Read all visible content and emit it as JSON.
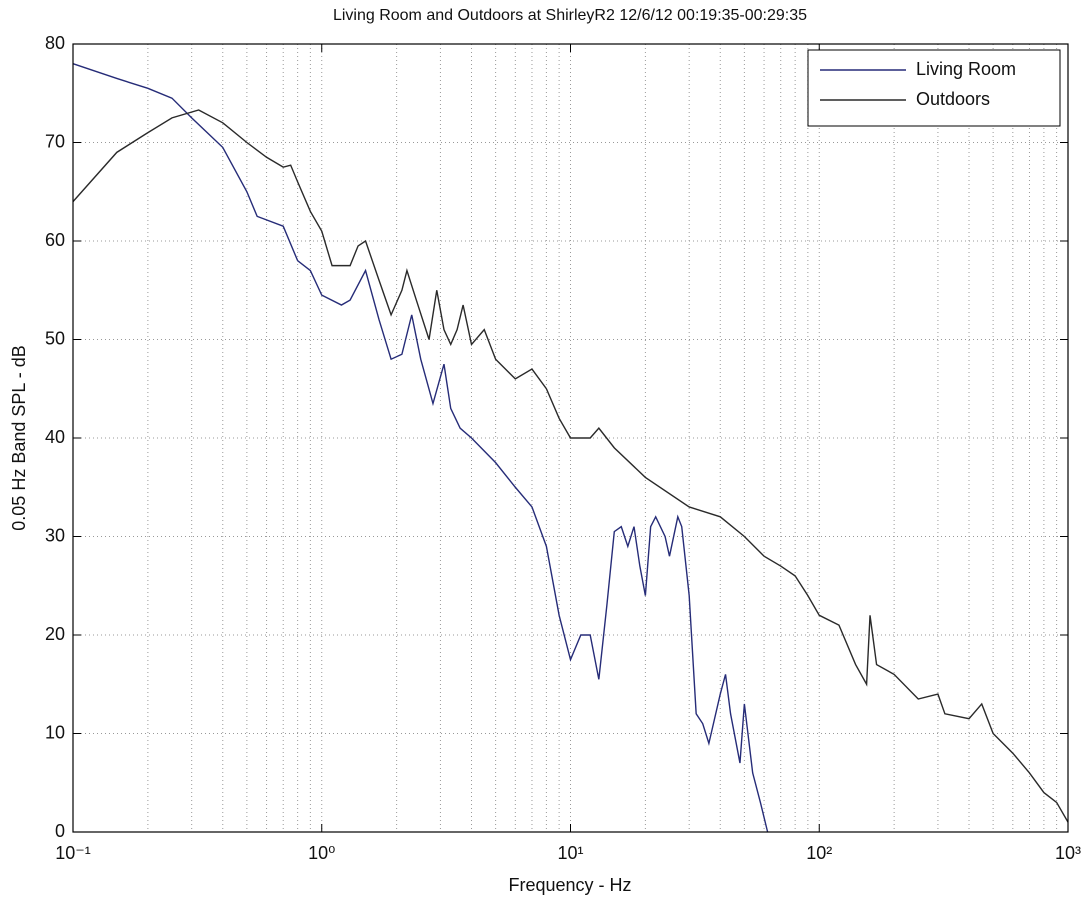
{
  "chart_data": {
    "type": "line",
    "title": "Living Room and Outdoors at ShirleyR2 12/6/12 00:19:35-00:29:35",
    "x_label": "Frequency - Hz",
    "y_label": "0.05 Hz Band SPL - dB",
    "x_scale": "log",
    "xlim": [
      0.1,
      1000
    ],
    "ylim": [
      0,
      80
    ],
    "xticks": [
      {
        "value": 0.1,
        "label": "10⁻¹"
      },
      {
        "value": 1,
        "label": "10⁰"
      },
      {
        "value": 10,
        "label": "10¹"
      },
      {
        "value": 100,
        "label": "10²"
      },
      {
        "value": 1000,
        "label": "10³"
      }
    ],
    "yticks": [
      0,
      10,
      20,
      30,
      40,
      50,
      60,
      70,
      80
    ],
    "grid": true,
    "legend": "upper right",
    "series": [
      {
        "name": "Living Room",
        "color": "#262c78",
        "x": [
          0.1,
          0.15,
          0.2,
          0.25,
          0.3,
          0.4,
          0.5,
          0.55,
          0.7,
          0.8,
          0.9,
          1.0,
          1.2,
          1.3,
          1.5,
          1.7,
          1.9,
          2.1,
          2.3,
          2.5,
          2.8,
          3.1,
          3.3,
          3.6,
          4,
          5,
          6,
          7,
          8,
          9,
          10,
          11,
          12,
          13,
          14,
          15,
          16,
          17,
          18,
          19,
          20,
          21,
          22,
          24,
          25,
          27,
          28,
          30,
          32,
          34,
          36,
          40,
          42,
          44,
          48,
          50,
          54,
          58,
          62
        ],
        "values": [
          78,
          76.5,
          75.5,
          74.5,
          72.5,
          69.5,
          65,
          62.5,
          61.5,
          58,
          57,
          54.5,
          53.5,
          54,
          57,
          52,
          48,
          48.5,
          52.5,
          48,
          43.5,
          47.5,
          43,
          41,
          40,
          37.5,
          35,
          33,
          29,
          22,
          17.5,
          20,
          20,
          15.5,
          23,
          30.5,
          31,
          29,
          31,
          27,
          24,
          31,
          32,
          30,
          28,
          32,
          31,
          24,
          12,
          11,
          9,
          14,
          16,
          12,
          7,
          13,
          6,
          3,
          0
        ]
      },
      {
        "name": "Outdoors",
        "color": "#2a2a2a",
        "x": [
          0.1,
          0.15,
          0.2,
          0.25,
          0.32,
          0.4,
          0.5,
          0.6,
          0.7,
          0.75,
          0.8,
          0.9,
          1.0,
          1.1,
          1.3,
          1.4,
          1.5,
          1.7,
          1.9,
          2.1,
          2.2,
          2.4,
          2.7,
          2.9,
          3.1,
          3.3,
          3.5,
          3.7,
          4,
          4.5,
          5,
          6,
          7,
          8,
          9,
          10,
          12,
          13,
          15,
          20,
          30,
          40,
          50,
          60,
          70,
          80,
          90,
          100,
          120,
          140,
          155,
          160,
          170,
          200,
          250,
          300,
          320,
          400,
          450,
          500,
          600,
          700,
          800,
          900,
          1000
        ],
        "values": [
          64,
          69,
          71,
          72.5,
          73.3,
          72,
          70,
          68.5,
          67.5,
          67.7,
          66,
          63,
          61,
          57.5,
          57.5,
          59.5,
          60,
          56,
          52.5,
          55,
          57,
          54,
          50,
          55,
          51,
          49.5,
          51,
          53.5,
          49.5,
          51,
          48,
          46,
          47,
          45,
          42,
          40,
          40,
          41,
          39,
          36,
          33,
          32,
          30,
          28,
          27,
          26,
          24,
          22,
          21,
          17,
          15,
          22,
          17,
          16,
          13.5,
          14,
          12,
          11.5,
          13,
          10,
          8,
          6,
          4,
          3,
          1
        ]
      }
    ]
  }
}
